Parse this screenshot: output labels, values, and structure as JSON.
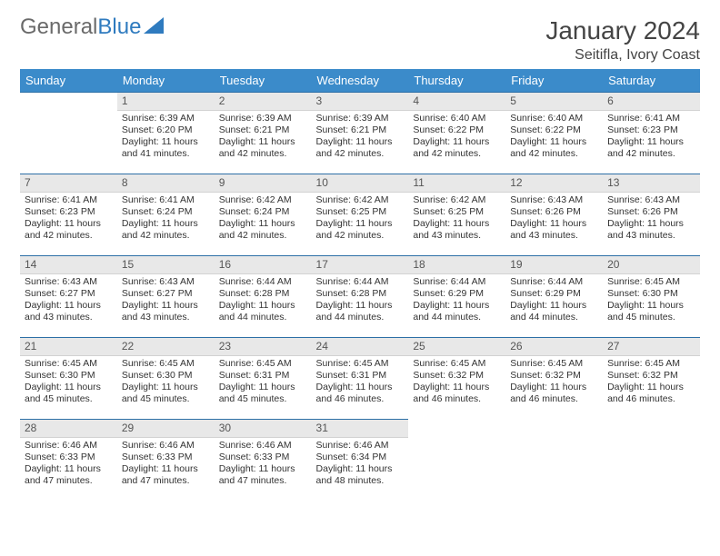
{
  "logo": {
    "text_general": "General",
    "text_blue": "Blue"
  },
  "header": {
    "month_title": "January 2024",
    "location": "Seitifla, Ivory Coast"
  },
  "theme": {
    "header_bg": "#3b8bca",
    "header_text": "#ffffff",
    "daynum_bg": "#e8e8e8",
    "row_divider": "#2c6fa6",
    "body_text": "#333333"
  },
  "day_labels": [
    "Sunday",
    "Monday",
    "Tuesday",
    "Wednesday",
    "Thursday",
    "Friday",
    "Saturday"
  ],
  "calendar": {
    "leading_blanks": 1,
    "days": [
      {
        "n": 1,
        "sunrise": "6:39 AM",
        "sunset": "6:20 PM",
        "daylight": "11 hours and 41 minutes."
      },
      {
        "n": 2,
        "sunrise": "6:39 AM",
        "sunset": "6:21 PM",
        "daylight": "11 hours and 42 minutes."
      },
      {
        "n": 3,
        "sunrise": "6:39 AM",
        "sunset": "6:21 PM",
        "daylight": "11 hours and 42 minutes."
      },
      {
        "n": 4,
        "sunrise": "6:40 AM",
        "sunset": "6:22 PM",
        "daylight": "11 hours and 42 minutes."
      },
      {
        "n": 5,
        "sunrise": "6:40 AM",
        "sunset": "6:22 PM",
        "daylight": "11 hours and 42 minutes."
      },
      {
        "n": 6,
        "sunrise": "6:41 AM",
        "sunset": "6:23 PM",
        "daylight": "11 hours and 42 minutes."
      },
      {
        "n": 7,
        "sunrise": "6:41 AM",
        "sunset": "6:23 PM",
        "daylight": "11 hours and 42 minutes."
      },
      {
        "n": 8,
        "sunrise": "6:41 AM",
        "sunset": "6:24 PM",
        "daylight": "11 hours and 42 minutes."
      },
      {
        "n": 9,
        "sunrise": "6:42 AM",
        "sunset": "6:24 PM",
        "daylight": "11 hours and 42 minutes."
      },
      {
        "n": 10,
        "sunrise": "6:42 AM",
        "sunset": "6:25 PM",
        "daylight": "11 hours and 42 minutes."
      },
      {
        "n": 11,
        "sunrise": "6:42 AM",
        "sunset": "6:25 PM",
        "daylight": "11 hours and 43 minutes."
      },
      {
        "n": 12,
        "sunrise": "6:43 AM",
        "sunset": "6:26 PM",
        "daylight": "11 hours and 43 minutes."
      },
      {
        "n": 13,
        "sunrise": "6:43 AM",
        "sunset": "6:26 PM",
        "daylight": "11 hours and 43 minutes."
      },
      {
        "n": 14,
        "sunrise": "6:43 AM",
        "sunset": "6:27 PM",
        "daylight": "11 hours and 43 minutes."
      },
      {
        "n": 15,
        "sunrise": "6:43 AM",
        "sunset": "6:27 PM",
        "daylight": "11 hours and 43 minutes."
      },
      {
        "n": 16,
        "sunrise": "6:44 AM",
        "sunset": "6:28 PM",
        "daylight": "11 hours and 44 minutes."
      },
      {
        "n": 17,
        "sunrise": "6:44 AM",
        "sunset": "6:28 PM",
        "daylight": "11 hours and 44 minutes."
      },
      {
        "n": 18,
        "sunrise": "6:44 AM",
        "sunset": "6:29 PM",
        "daylight": "11 hours and 44 minutes."
      },
      {
        "n": 19,
        "sunrise": "6:44 AM",
        "sunset": "6:29 PM",
        "daylight": "11 hours and 44 minutes."
      },
      {
        "n": 20,
        "sunrise": "6:45 AM",
        "sunset": "6:30 PM",
        "daylight": "11 hours and 45 minutes."
      },
      {
        "n": 21,
        "sunrise": "6:45 AM",
        "sunset": "6:30 PM",
        "daylight": "11 hours and 45 minutes."
      },
      {
        "n": 22,
        "sunrise": "6:45 AM",
        "sunset": "6:30 PM",
        "daylight": "11 hours and 45 minutes."
      },
      {
        "n": 23,
        "sunrise": "6:45 AM",
        "sunset": "6:31 PM",
        "daylight": "11 hours and 45 minutes."
      },
      {
        "n": 24,
        "sunrise": "6:45 AM",
        "sunset": "6:31 PM",
        "daylight": "11 hours and 46 minutes."
      },
      {
        "n": 25,
        "sunrise": "6:45 AM",
        "sunset": "6:32 PM",
        "daylight": "11 hours and 46 minutes."
      },
      {
        "n": 26,
        "sunrise": "6:45 AM",
        "sunset": "6:32 PM",
        "daylight": "11 hours and 46 minutes."
      },
      {
        "n": 27,
        "sunrise": "6:45 AM",
        "sunset": "6:32 PM",
        "daylight": "11 hours and 46 minutes."
      },
      {
        "n": 28,
        "sunrise": "6:46 AM",
        "sunset": "6:33 PM",
        "daylight": "11 hours and 47 minutes."
      },
      {
        "n": 29,
        "sunrise": "6:46 AM",
        "sunset": "6:33 PM",
        "daylight": "11 hours and 47 minutes."
      },
      {
        "n": 30,
        "sunrise": "6:46 AM",
        "sunset": "6:33 PM",
        "daylight": "11 hours and 47 minutes."
      },
      {
        "n": 31,
        "sunrise": "6:46 AM",
        "sunset": "6:34 PM",
        "daylight": "11 hours and 48 minutes."
      }
    ]
  },
  "labels": {
    "sunrise": "Sunrise:",
    "sunset": "Sunset:",
    "daylight": "Daylight:"
  }
}
